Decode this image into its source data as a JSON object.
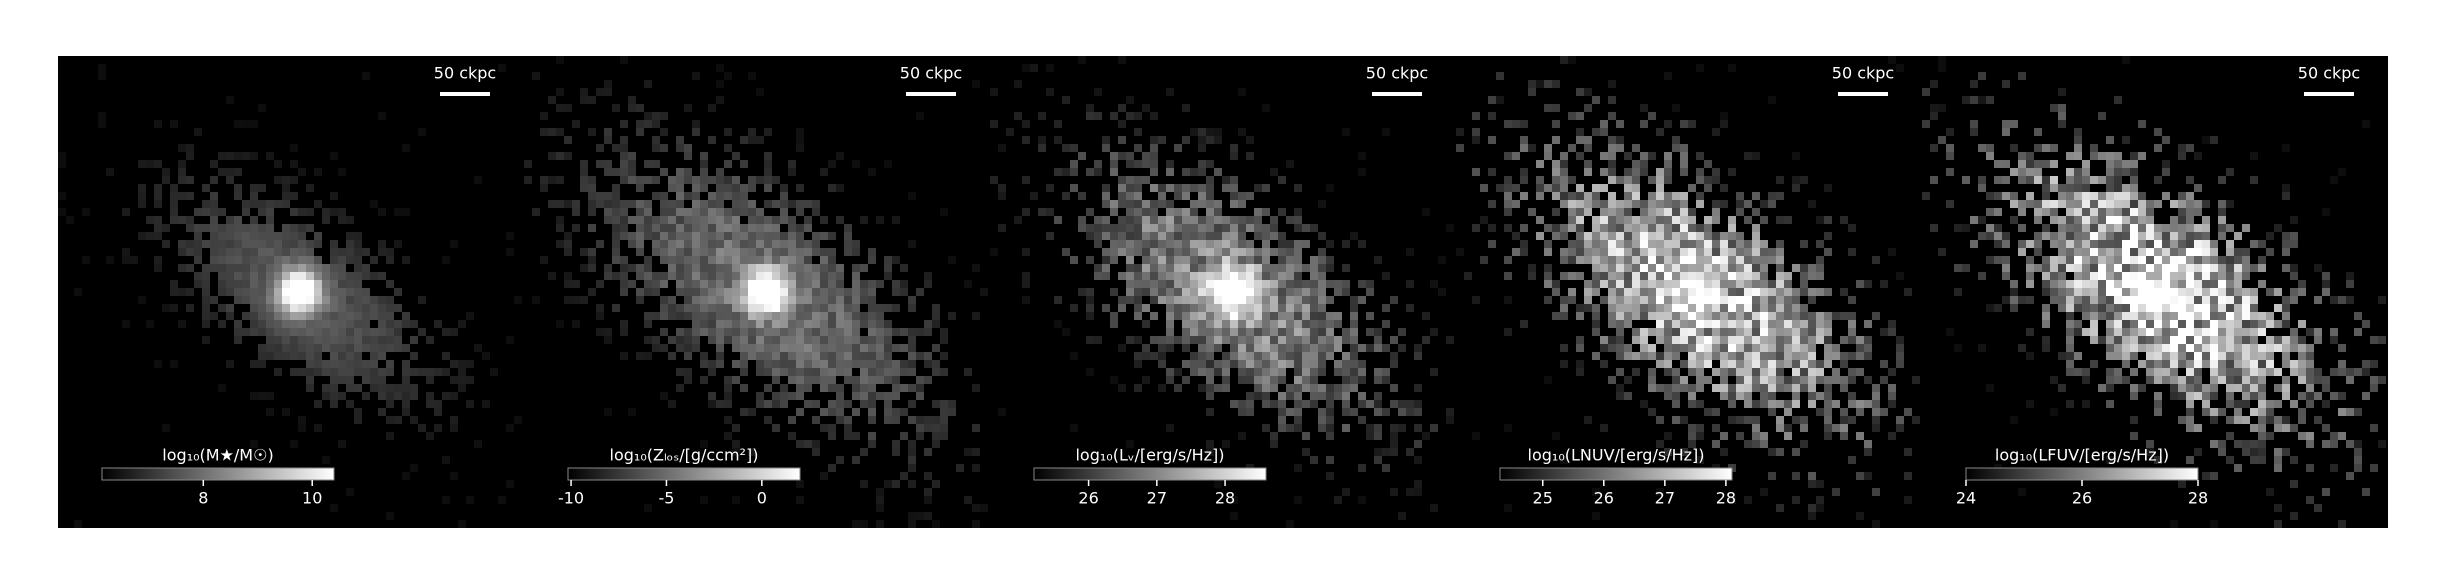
{
  "chart_data": [
    {
      "type": "image",
      "scale_label": "50 ckpc",
      "colorbar_label": "log₁₀(M★/M☉)",
      "clim": [
        6.14,
        10.4
      ],
      "cticks": [
        8,
        10
      ]
    },
    {
      "type": "image",
      "scale_label": "50 ckpc",
      "colorbar_label": "log₁₀(Zₗₒₛ/[g/ccm²])",
      "clim": [
        -10.16,
        2.0
      ],
      "cticks": [
        -10,
        -5,
        0
      ]
    },
    {
      "type": "image",
      "scale_label": "50 ckpc",
      "colorbar_label": "log₁₀(Lᵥ/[erg/s/Hz])",
      "clim": [
        25.2,
        28.6
      ],
      "cticks": [
        26,
        27,
        28
      ]
    },
    {
      "type": "image",
      "scale_label": "50 ckpc",
      "colorbar_label": "log₁₀(LNUV/[erg/s/Hz])",
      "clim": [
        24.3,
        28.1
      ],
      "cticks": [
        25,
        26,
        27,
        28
      ]
    },
    {
      "type": "image",
      "scale_label": "50 ckpc",
      "colorbar_label": "log₁₀(LFUV/[erg/s/Hz])",
      "clim": [
        24.0,
        28.0
      ],
      "cticks": [
        24,
        26,
        28
      ]
    }
  ]
}
